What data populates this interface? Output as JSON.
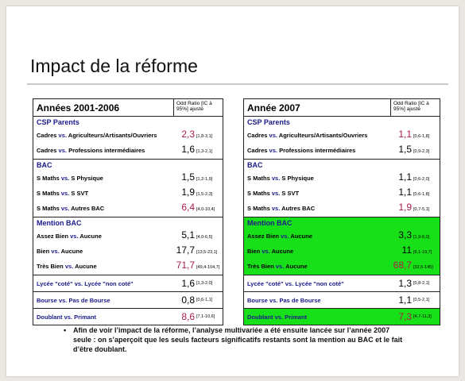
{
  "title": "Impact de la réforme",
  "odd_header": "Odd Ratio [IC à 95%] ajusté",
  "vs": "vs.",
  "tables": [
    {
      "header": "Années 2001-2006",
      "sections": [
        {
          "title": "CSP Parents",
          "rows": [
            {
              "a": "Cadres",
              "b": "Agriculteurs/Artisants/Ouvriers",
              "val": "2,3",
              "ci": "[1,8-3,1]",
              "red": true
            },
            {
              "a": "Cadres",
              "b": "Professions intermédiaires",
              "val": "1,6",
              "ci": "[1,3-2,1]",
              "red": false
            }
          ]
        },
        {
          "title": "BAC",
          "rows": [
            {
              "a": "S Maths",
              "b": "S Physique",
              "val": "1,5",
              "ci": "[1,2-1,9]",
              "red": false
            },
            {
              "a": "S Maths",
              "b": "S SVT",
              "val": "1,9",
              "ci": "[1,5-2,3]",
              "red": false
            },
            {
              "a": "S Maths",
              "b": "Autres BAC",
              "val": "6,4",
              "ci": "[4,0-10,4]",
              "red": true
            }
          ]
        },
        {
          "title": "Mention BAC",
          "rows": [
            {
              "a": "Assez Bien",
              "b": "Aucune",
              "val": "5,1",
              "ci": "[4,0-6,5]",
              "red": false
            },
            {
              "a": "Bien",
              "b": "Aucune",
              "val": "17,7",
              "ci": "[13,5-23,1]",
              "red": false
            },
            {
              "a": "Très Bien",
              "b": "Aucune",
              "val": "71,7",
              "ci": "[49,4-104,7]",
              "red": true
            }
          ]
        }
      ],
      "singles": [
        {
          "a": "Lycée \"coté\"",
          "b": "Lycée \"non coté\"",
          "val": "1,6",
          "ci": "[1,3-2,0]",
          "red": false
        },
        {
          "a": "Bourse",
          "b": "Pas de Bourse",
          "val": "0,8",
          "ci": "[0,6-1,1]",
          "red": false
        },
        {
          "a": "Doublant",
          "b": "Primant",
          "val": "8,6",
          "ci": "[7,1-10,6]",
          "red": true
        }
      ]
    },
    {
      "header": "Année 2007",
      "sections": [
        {
          "title": "CSP Parents",
          "rows": [
            {
              "a": "Cadres",
              "b": "Agriculteurs/Artisants/Ouvriers",
              "val": "1,1",
              "ci": "[0,6-1,8]",
              "red": true
            },
            {
              "a": "Cadres",
              "b": "Professions intermédiaires",
              "val": "1,5",
              "ci": "[0,9-2,3]",
              "red": false
            }
          ]
        },
        {
          "title": "BAC",
          "rows": [
            {
              "a": "S Maths",
              "b": "S Physique",
              "val": "1,1",
              "ci": "[0,6-2,0]",
              "red": false
            },
            {
              "a": "S Maths",
              "b": "S SVT",
              "val": "1,1",
              "ci": "[0,6-1,8]",
              "red": false
            },
            {
              "a": "S Maths",
              "b": "Autres BAC",
              "val": "1,9",
              "ci": "[0,7-5,1]",
              "red": true
            }
          ]
        },
        {
          "title": "Mention BAC",
          "rows": [
            {
              "a": "Assez Bien",
              "b": "Aucune",
              "val": "3,3",
              "ci": "[1,9-6,0]",
              "red": false
            },
            {
              "a": "Bien",
              "b": "Aucune",
              "val": "11",
              "ci": "[6,1-19,7]",
              "red": false
            },
            {
              "a": "Très Bien",
              "b": "Aucune",
              "val": "68,7",
              "ci": "[32,6-145]",
              "red": true
            }
          ]
        }
      ],
      "singles": [
        {
          "a": "Lycée \"coté\"",
          "b": "Lycée \"non coté\"",
          "val": "1,3",
          "ci": "[0,8-2,1]",
          "red": false
        },
        {
          "a": "Bourse",
          "b": "Pas de Bourse",
          "val": "1,1",
          "ci": "[0,5-2,1]",
          "red": false
        },
        {
          "a": "Doublant",
          "b": "Primant",
          "val": "7,3",
          "ci": "[4,7-11,3]",
          "red": true
        }
      ]
    }
  ],
  "note": "Afin de voir l’impact de la réforme, l’analyse multivariée a été ensuite lancée sur l’année 2007 seule : on s’aperçoit que les seuls facteurs significatifs restants sont la mention au BAC et le fait d’être doublant.",
  "bullet": "▪",
  "colors": {
    "highlight": "#18e018",
    "label_blue": "#1a1a8a",
    "value_red": "#aa1c4a"
  }
}
